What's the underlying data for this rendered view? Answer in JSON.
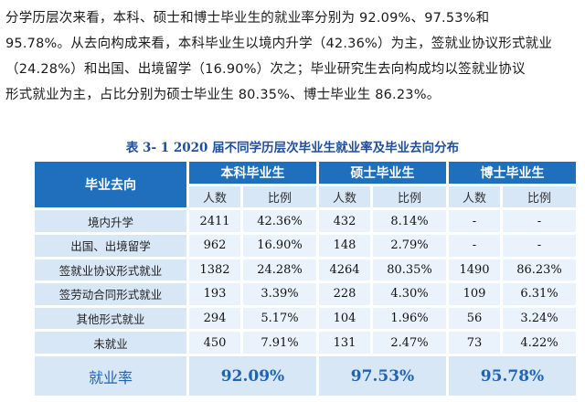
{
  "paragraph": {
    "line1": "分学历层次来看，本科、硕士和博士毕业生的就业率分别为 92.09%、97.53%和",
    "line2": "95.78%。从去向构成来看，本科毕业生以境内升学（42.36%）为主，签就业协议形式就业",
    "line3": "（24.28%）和出国、出境留学（16.90%）次之；毕业研究生去向构成均以签就业协议",
    "line4": "形式就业为主，占比分别为硕士毕业生 80.35%、博士毕业生 86.23%。"
  },
  "table": {
    "caption": "表 3- 1    2020 届不同学历层次毕业生就业率及毕业去向分布",
    "corner_header": "毕业去向",
    "groups": [
      "本科毕业生",
      "硕士毕业生",
      "博士毕业生"
    ],
    "subheaders": [
      "人数",
      "比例",
      "人数",
      "比例",
      "人数",
      "比例"
    ],
    "rows": [
      {
        "label": "境内升学",
        "cells": [
          "2411",
          "42.36%",
          "432",
          "8.14%",
          "-",
          "-"
        ]
      },
      {
        "label": "出国、出境留学",
        "cells": [
          "962",
          "16.90%",
          "148",
          "2.79%",
          "-",
          "-"
        ]
      },
      {
        "label": "签就业协议形式就业",
        "cells": [
          "1382",
          "24.28%",
          "4264",
          "80.35%",
          "1490",
          "86.23%"
        ]
      },
      {
        "label": "签劳动合同形式就业",
        "cells": [
          "193",
          "3.39%",
          "228",
          "4.30%",
          "109",
          "6.31%"
        ]
      },
      {
        "label": "其他形式就业",
        "cells": [
          "294",
          "5.17%",
          "104",
          "1.96%",
          "56",
          "3.24%"
        ]
      },
      {
        "label": "未就业",
        "cells": [
          "450",
          "7.91%",
          "131",
          "2.47%",
          "73",
          "4.22%"
        ]
      }
    ],
    "rate_label": "就业率",
    "rates": [
      "92.09%",
      "97.53%",
      "95.78%"
    ]
  },
  "colors": {
    "header_blue": "#1f6fbd",
    "light_blue": "#d8e7f6",
    "cell_blue": "#eaf2fb",
    "rate_text": "#1f63b4"
  }
}
